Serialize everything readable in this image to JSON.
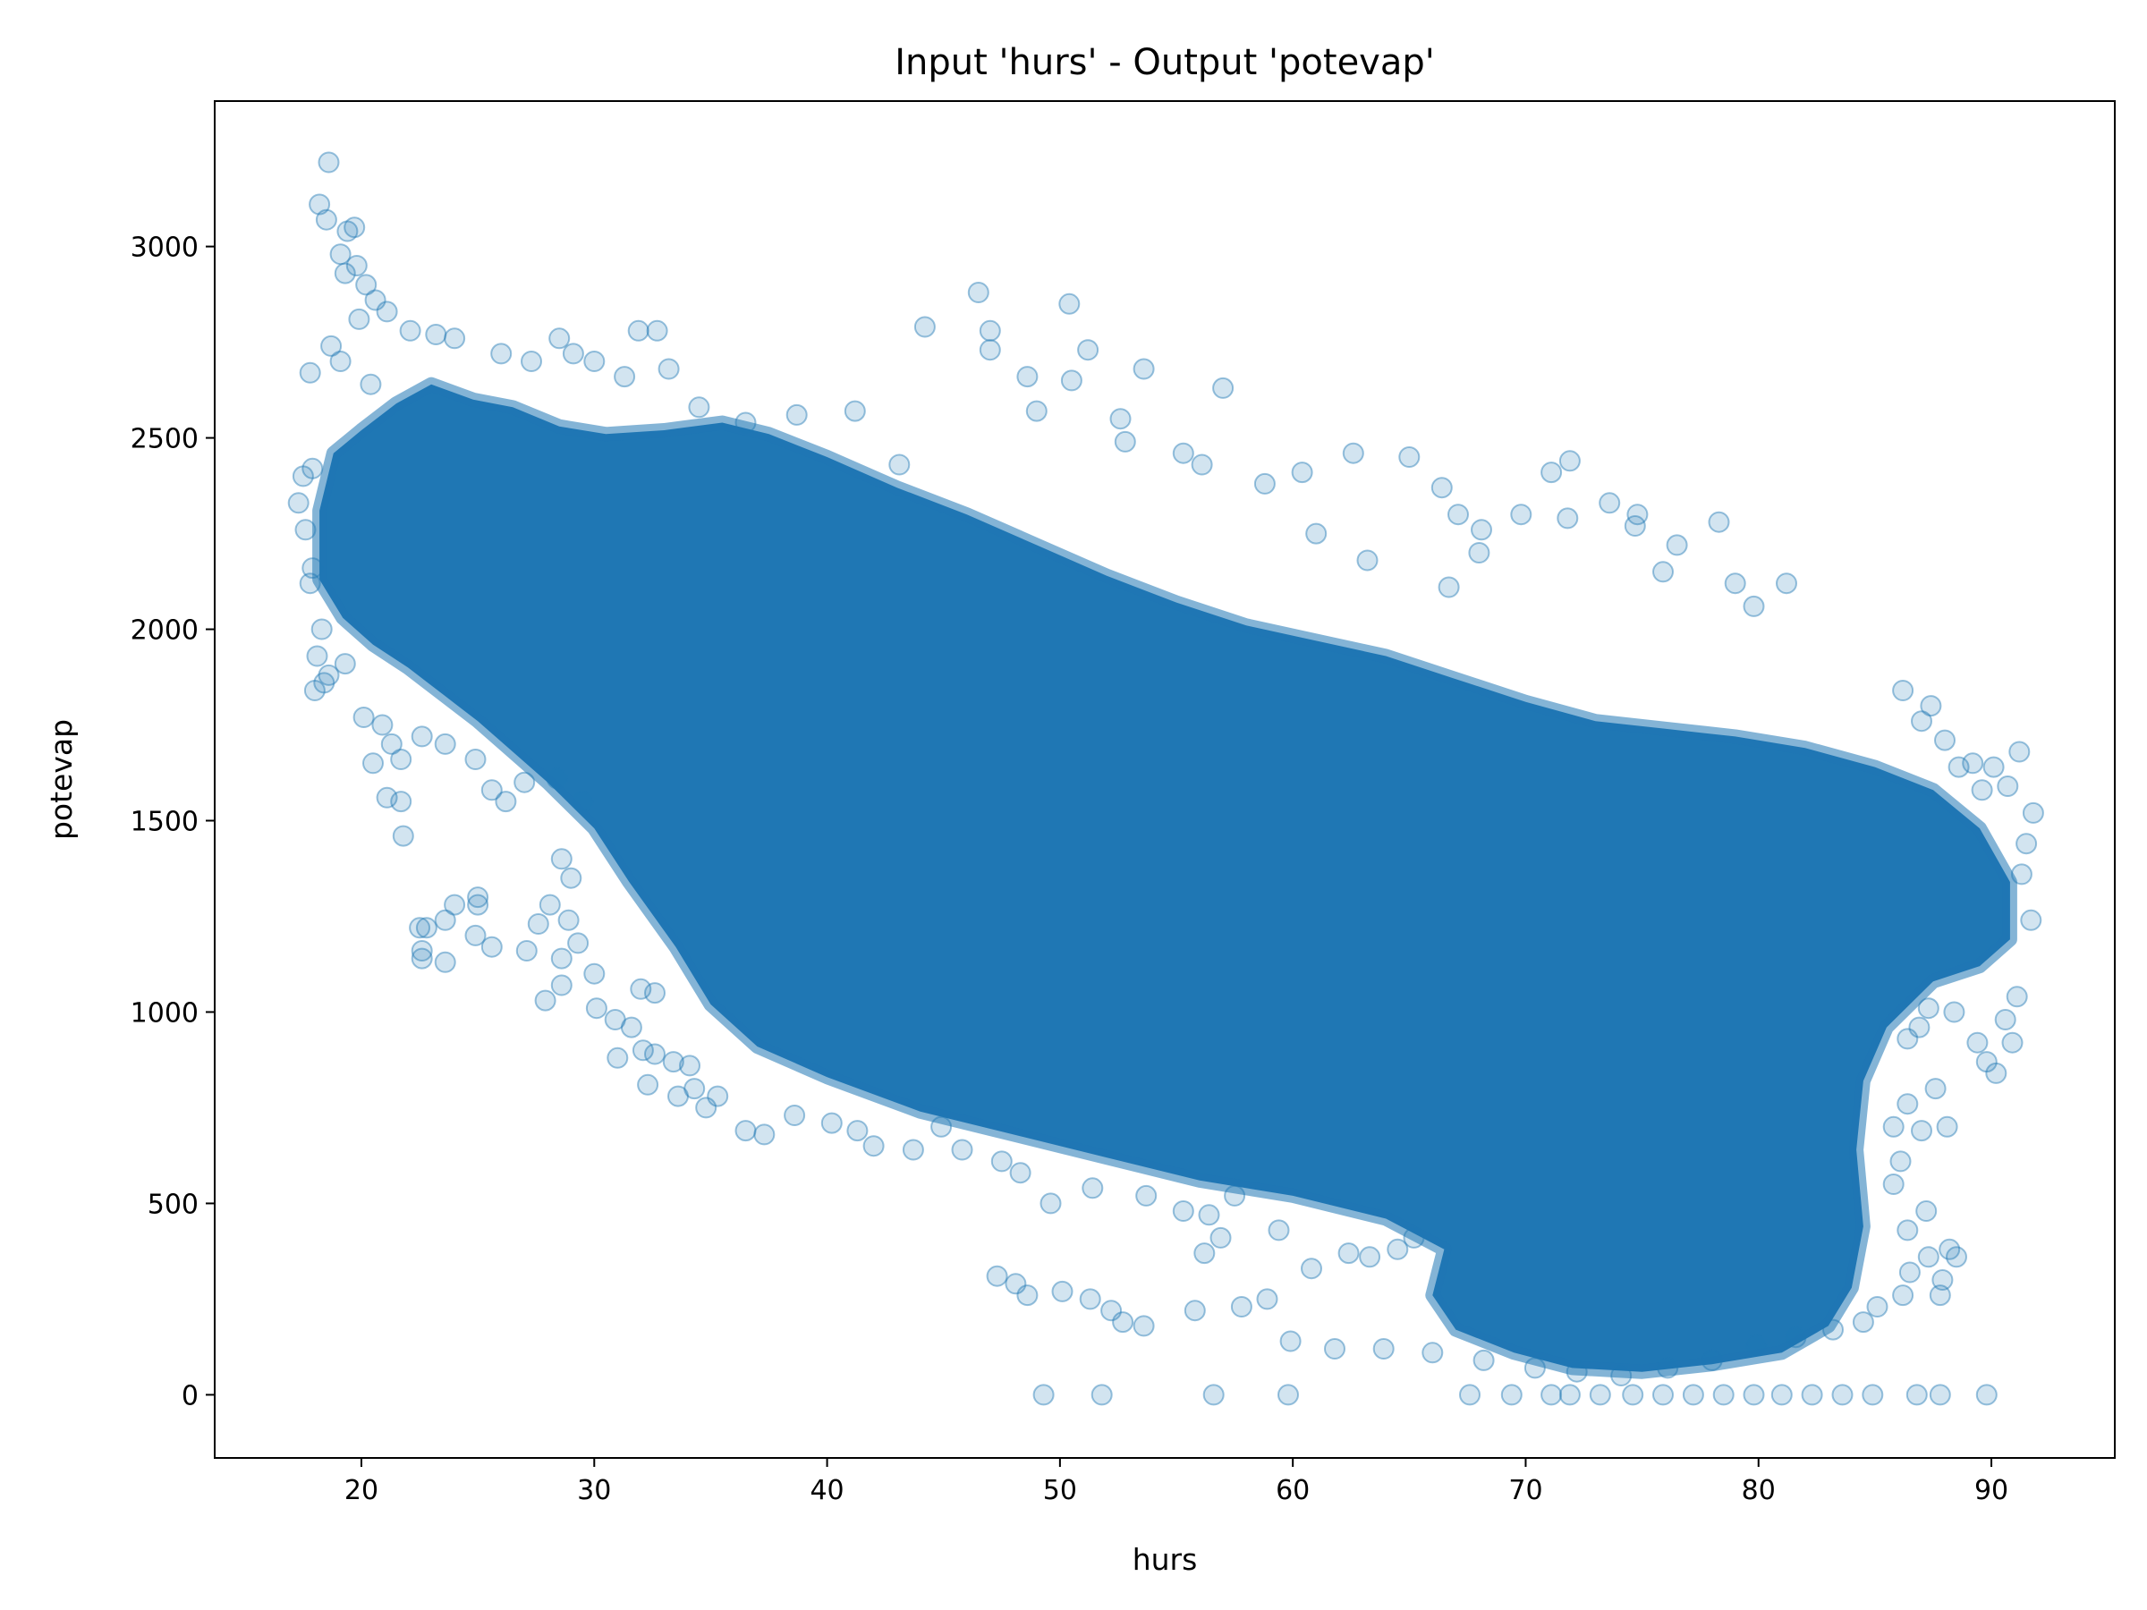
{
  "chart_data": {
    "type": "scatter",
    "title": "Input 'hurs' - Output 'potevap'",
    "xlabel": "hurs",
    "ylabel": "potevap",
    "xlim": [
      13.7,
      95.3
    ],
    "ylim": [
      -165,
      3380
    ],
    "x_ticks": [
      20,
      30,
      40,
      50,
      60,
      70,
      80,
      90
    ],
    "y_ticks": [
      0,
      500,
      1000,
      1500,
      2000,
      2500,
      3000
    ],
    "grid": false,
    "legend": "none",
    "marker": "circle",
    "marker_alpha": 0.2,
    "colors": {
      "series": "#1f77b4",
      "axes": "#000000",
      "background": "#ffffff"
    },
    "series": [
      {
        "points": [
          [
            18.6,
            3220
          ],
          [
            18.2,
            3110
          ],
          [
            18.5,
            3070
          ],
          [
            19.7,
            3050
          ],
          [
            19.4,
            3040
          ],
          [
            19.1,
            2980
          ],
          [
            19.8,
            2950
          ],
          [
            20.2,
            2900
          ],
          [
            19.3,
            2930
          ],
          [
            20.6,
            2860
          ],
          [
            21.1,
            2830
          ],
          [
            19.9,
            2810
          ],
          [
            17.8,
            2670
          ],
          [
            19.1,
            2700
          ],
          [
            18.7,
            2740
          ],
          [
            20.4,
            2640
          ],
          [
            22.1,
            2780
          ],
          [
            23.2,
            2770
          ],
          [
            24.0,
            2760
          ],
          [
            26.0,
            2720
          ],
          [
            27.3,
            2700
          ],
          [
            28.5,
            2760
          ],
          [
            29.1,
            2720
          ],
          [
            30.0,
            2700
          ],
          [
            31.3,
            2660
          ],
          [
            31.9,
            2780
          ],
          [
            32.7,
            2780
          ],
          [
            33.2,
            2680
          ],
          [
            34.5,
            2580
          ],
          [
            36.5,
            2540
          ],
          [
            38.7,
            2560
          ],
          [
            41.2,
            2570
          ],
          [
            43.1,
            2430
          ],
          [
            46.5,
            2880
          ],
          [
            47.0,
            2780
          ],
          [
            47.0,
            2730
          ],
          [
            44.2,
            2790
          ],
          [
            48.6,
            2660
          ],
          [
            50.4,
            2850
          ],
          [
            51.2,
            2730
          ],
          [
            50.5,
            2650
          ],
          [
            52.6,
            2550
          ],
          [
            53.6,
            2680
          ],
          [
            57.0,
            2630
          ],
          [
            49.0,
            2570
          ],
          [
            52.8,
            2490
          ],
          [
            55.3,
            2460
          ],
          [
            56.1,
            2430
          ],
          [
            58.8,
            2380
          ],
          [
            60.4,
            2410
          ],
          [
            62.6,
            2460
          ],
          [
            65.0,
            2450
          ],
          [
            66.4,
            2370
          ],
          [
            67.1,
            2300
          ],
          [
            68.1,
            2260
          ],
          [
            69.8,
            2300
          ],
          [
            71.9,
            2440
          ],
          [
            71.1,
            2410
          ],
          [
            71.8,
            2290
          ],
          [
            73.6,
            2330
          ],
          [
            74.8,
            2300
          ],
          [
            74.7,
            2270
          ],
          [
            75.9,
            2150
          ],
          [
            76.5,
            2220
          ],
          [
            78.3,
            2280
          ],
          [
            79.0,
            2120
          ],
          [
            81.2,
            2120
          ],
          [
            79.8,
            2060
          ],
          [
            68.0,
            2200
          ],
          [
            66.7,
            2110
          ],
          [
            63.2,
            2180
          ],
          [
            61.0,
            2250
          ],
          [
            17.3,
            2330
          ],
          [
            17.5,
            2400
          ],
          [
            17.9,
            2420
          ],
          [
            17.6,
            2260
          ],
          [
            17.9,
            2160
          ],
          [
            17.8,
            2120
          ],
          [
            18.3,
            2000
          ],
          [
            18.1,
            1930
          ],
          [
            18.6,
            1880
          ],
          [
            18.0,
            1840
          ],
          [
            18.4,
            1860
          ],
          [
            19.3,
            1910
          ],
          [
            20.1,
            1770
          ],
          [
            20.5,
            1650
          ],
          [
            20.9,
            1750
          ],
          [
            21.3,
            1700
          ],
          [
            21.7,
            1660
          ],
          [
            21.1,
            1560
          ],
          [
            21.7,
            1550
          ],
          [
            21.8,
            1460
          ],
          [
            22.6,
            1720
          ],
          [
            23.6,
            1700
          ],
          [
            24.9,
            1660
          ],
          [
            25.6,
            1580
          ],
          [
            26.2,
            1550
          ],
          [
            27.0,
            1600
          ],
          [
            28.4,
            1610
          ],
          [
            29.5,
            1550
          ],
          [
            28.6,
            1400
          ],
          [
            29.0,
            1350
          ],
          [
            22.5,
            1220
          ],
          [
            22.8,
            1220
          ],
          [
            23.6,
            1240
          ],
          [
            22.6,
            1160
          ],
          [
            22.6,
            1140
          ],
          [
            23.6,
            1130
          ],
          [
            24.0,
            1280
          ],
          [
            25.0,
            1300
          ],
          [
            25.0,
            1280
          ],
          [
            24.9,
            1200
          ],
          [
            25.6,
            1170
          ],
          [
            27.1,
            1160
          ],
          [
            27.6,
            1230
          ],
          [
            28.1,
            1280
          ],
          [
            28.9,
            1240
          ],
          [
            28.6,
            1140
          ],
          [
            27.9,
            1030
          ],
          [
            28.6,
            1070
          ],
          [
            29.3,
            1180
          ],
          [
            30.0,
            1100
          ],
          [
            30.1,
            1010
          ],
          [
            30.9,
            980
          ],
          [
            32.0,
            1060
          ],
          [
            32.6,
            1050
          ],
          [
            31.6,
            960
          ],
          [
            32.1,
            900
          ],
          [
            31.0,
            880
          ],
          [
            32.6,
            890
          ],
          [
            32.3,
            810
          ],
          [
            33.4,
            870
          ],
          [
            34.1,
            860
          ],
          [
            33.6,
            780
          ],
          [
            34.3,
            800
          ],
          [
            34.8,
            750
          ],
          [
            35.3,
            780
          ],
          [
            36.5,
            690
          ],
          [
            37.3,
            680
          ],
          [
            38.6,
            730
          ],
          [
            40.2,
            710
          ],
          [
            41.3,
            690
          ],
          [
            42.0,
            650
          ],
          [
            43.7,
            640
          ],
          [
            44.9,
            700
          ],
          [
            45.8,
            640
          ],
          [
            47.5,
            610
          ],
          [
            48.3,
            580
          ],
          [
            49.6,
            500
          ],
          [
            51.4,
            540
          ],
          [
            53.7,
            520
          ],
          [
            55.3,
            480
          ],
          [
            56.4,
            470
          ],
          [
            57.5,
            520
          ],
          [
            56.9,
            410
          ],
          [
            56.2,
            370
          ],
          [
            47.3,
            310
          ],
          [
            48.1,
            290
          ],
          [
            48.6,
            260
          ],
          [
            50.1,
            270
          ],
          [
            51.3,
            250
          ],
          [
            52.2,
            220
          ],
          [
            52.7,
            190
          ],
          [
            53.6,
            180
          ],
          [
            55.8,
            220
          ],
          [
            57.8,
            230
          ],
          [
            58.9,
            250
          ],
          [
            60.8,
            330
          ],
          [
            62.4,
            370
          ],
          [
            63.3,
            360
          ],
          [
            64.5,
            380
          ],
          [
            65.2,
            410
          ],
          [
            59.4,
            430
          ],
          [
            59.9,
            140
          ],
          [
            61.8,
            120
          ],
          [
            63.9,
            120
          ],
          [
            66.0,
            110
          ],
          [
            68.2,
            90
          ],
          [
            70.4,
            70
          ],
          [
            72.2,
            60
          ],
          [
            74.1,
            50
          ],
          [
            76.1,
            70
          ],
          [
            78.0,
            90
          ],
          [
            79.9,
            130
          ],
          [
            81.6,
            150
          ],
          [
            83.2,
            170
          ],
          [
            84.5,
            190
          ],
          [
            85.1,
            230
          ],
          [
            86.2,
            260
          ],
          [
            86.5,
            320
          ],
          [
            87.3,
            360
          ],
          [
            87.9,
            300
          ],
          [
            87.8,
            260
          ],
          [
            88.5,
            360
          ],
          [
            88.2,
            380
          ],
          [
            86.4,
            430
          ],
          [
            87.2,
            480
          ],
          [
            85.8,
            550
          ],
          [
            86.1,
            610
          ],
          [
            85.8,
            700
          ],
          [
            86.4,
            760
          ],
          [
            87.6,
            800
          ],
          [
            87.0,
            690
          ],
          [
            88.1,
            700
          ],
          [
            86.4,
            930
          ],
          [
            86.9,
            960
          ],
          [
            87.3,
            1010
          ],
          [
            88.4,
            1000
          ],
          [
            89.4,
            920
          ],
          [
            89.8,
            870
          ],
          [
            90.2,
            840
          ],
          [
            90.9,
            920
          ],
          [
            90.6,
            980
          ],
          [
            91.1,
            1040
          ],
          [
            91.7,
            1240
          ],
          [
            91.3,
            1360
          ],
          [
            91.5,
            1440
          ],
          [
            91.8,
            1520
          ],
          [
            91.2,
            1680
          ],
          [
            90.1,
            1640
          ],
          [
            89.2,
            1650
          ],
          [
            88.0,
            1710
          ],
          [
            87.0,
            1760
          ],
          [
            86.2,
            1840
          ],
          [
            87.4,
            1800
          ],
          [
            88.6,
            1640
          ],
          [
            89.6,
            1580
          ],
          [
            90.7,
            1590
          ],
          [
            49.3,
            0
          ],
          [
            51.8,
            0
          ],
          [
            56.6,
            0
          ],
          [
            59.8,
            0
          ],
          [
            67.6,
            0
          ],
          [
            69.4,
            0
          ],
          [
            71.1,
            0
          ],
          [
            71.9,
            0
          ],
          [
            73.2,
            0
          ],
          [
            74.6,
            0
          ],
          [
            75.9,
            0
          ],
          [
            77.2,
            0
          ],
          [
            78.5,
            0
          ],
          [
            79.8,
            0
          ],
          [
            81.0,
            0
          ],
          [
            82.3,
            0
          ],
          [
            83.6,
            0
          ],
          [
            84.9,
            0
          ],
          [
            86.8,
            0
          ],
          [
            87.8,
            0
          ],
          [
            89.8,
            0
          ]
        ]
      }
    ],
    "density_bands": [
      {
        "comment": "",
        "polygon": [
          [
            18.2,
            2310
          ],
          [
            18.8,
            2460
          ],
          [
            20.0,
            2520
          ],
          [
            21.5,
            2590
          ],
          [
            23.0,
            2640
          ],
          [
            24.8,
            2600
          ],
          [
            26.5,
            2580
          ],
          [
            28.5,
            2530
          ],
          [
            30.5,
            2510
          ],
          [
            33.0,
            2520
          ],
          [
            35.5,
            2540
          ],
          [
            37.5,
            2510
          ],
          [
            40.0,
            2450
          ],
          [
            43.0,
            2370
          ],
          [
            46.0,
            2300
          ],
          [
            49.0,
            2220
          ],
          [
            52.0,
            2140
          ],
          [
            55.0,
            2070
          ],
          [
            58.0,
            2010
          ],
          [
            61.0,
            1970
          ],
          [
            64.0,
            1930
          ],
          [
            67.0,
            1870
          ],
          [
            70.0,
            1810
          ],
          [
            73.0,
            1760
          ],
          [
            76.0,
            1740
          ],
          [
            79.0,
            1720
          ],
          [
            82.0,
            1690
          ],
          [
            85.0,
            1640
          ],
          [
            87.5,
            1580
          ],
          [
            89.5,
            1480
          ],
          [
            90.8,
            1340
          ],
          [
            90.8,
            1190
          ],
          [
            89.5,
            1120
          ],
          [
            87.5,
            1080
          ],
          [
            85.5,
            960
          ],
          [
            84.5,
            820
          ],
          [
            84.2,
            640
          ],
          [
            84.5,
            440
          ],
          [
            84.0,
            280
          ],
          [
            83.0,
            180
          ],
          [
            81.0,
            110
          ],
          [
            78.0,
            80
          ],
          [
            75.0,
            60
          ],
          [
            72.0,
            70
          ],
          [
            69.5,
            110
          ],
          [
            67.0,
            170
          ],
          [
            66.0,
            260
          ],
          [
            66.5,
            380
          ],
          [
            64.0,
            460
          ],
          [
            60.0,
            520
          ],
          [
            56.0,
            560
          ],
          [
            52.0,
            620
          ],
          [
            48.0,
            680
          ],
          [
            44.0,
            740
          ],
          [
            40.0,
            830
          ],
          [
            37.0,
            910
          ],
          [
            35.0,
            1020
          ],
          [
            33.5,
            1170
          ],
          [
            31.5,
            1340
          ],
          [
            30.0,
            1480
          ],
          [
            28.0,
            1600
          ],
          [
            26.5,
            1680
          ],
          [
            25.0,
            1760
          ],
          [
            23.5,
            1830
          ],
          [
            22.0,
            1900
          ],
          [
            20.5,
            1960
          ],
          [
            19.2,
            2030
          ],
          [
            18.2,
            2130
          ]
        ]
      }
    ]
  }
}
